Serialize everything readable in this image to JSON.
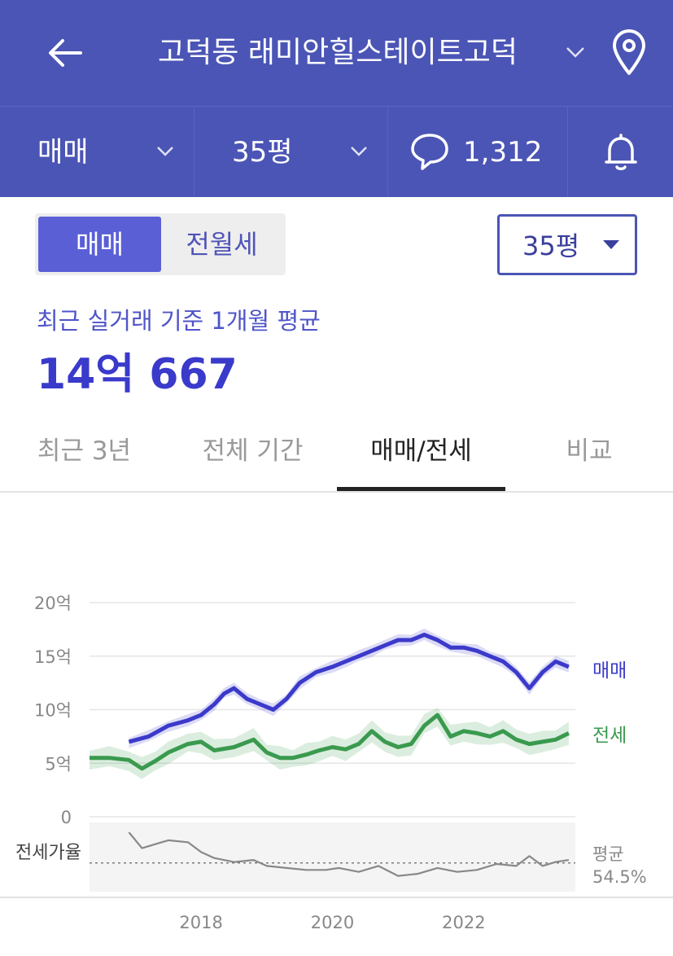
{
  "header": {
    "title": "고덕동 래미안힐스테이트고덕"
  },
  "subbar": {
    "trade_type": "매매",
    "size": "35평",
    "comment_count": "1,312"
  },
  "toggle": {
    "active": "매매",
    "inactive": "전월세"
  },
  "size_select": {
    "value": "35평"
  },
  "summary": {
    "label": "최근 실거래 기준 1개월 평균",
    "price": "14억 667"
  },
  "tabs": [
    {
      "label": "최근 3년"
    },
    {
      "label": "전체 기간"
    },
    {
      "label": "매매/전세"
    },
    {
      "label": "비교"
    }
  ],
  "colors": {
    "brand": "#4b55b5",
    "sale": "#3b3acb",
    "jeonse": "#3a9a4e",
    "ratio": "#888888"
  },
  "chart_data": {
    "type": "line",
    "xlabel": "",
    "ylabel": "",
    "x_ticks": [
      "2018",
      "2020",
      "2022"
    ],
    "y_ticks": [
      "20억",
      "15억",
      "10억",
      "5억",
      "0"
    ],
    "ylim": [
      0,
      20
    ],
    "xlim": [
      2016.3,
      2023.7
    ],
    "series": [
      {
        "name": "매매",
        "x": [
          2016.9,
          2017.2,
          2017.5,
          2017.8,
          2018.0,
          2018.2,
          2018.35,
          2018.5,
          2018.7,
          2018.9,
          2019.1,
          2019.3,
          2019.5,
          2019.75,
          2020.0,
          2020.2,
          2020.4,
          2020.6,
          2020.8,
          2021.0,
          2021.2,
          2021.4,
          2021.6,
          2021.8,
          2022.0,
          2022.2,
          2022.4,
          2022.6,
          2022.8,
          2023.0,
          2023.2,
          2023.4,
          2023.6
        ],
        "values": [
          7.0,
          7.5,
          8.5,
          9.0,
          9.5,
          10.5,
          11.5,
          12.0,
          11.0,
          10.5,
          10.0,
          11.0,
          12.5,
          13.5,
          14.0,
          14.5,
          15.0,
          15.5,
          16.0,
          16.5,
          16.5,
          17.0,
          16.5,
          15.8,
          15.8,
          15.5,
          15.0,
          14.5,
          13.5,
          12.0,
          13.5,
          14.5,
          14.0
        ]
      },
      {
        "name": "전세",
        "x": [
          2016.3,
          2016.6,
          2016.9,
          2017.1,
          2017.3,
          2017.5,
          2017.8,
          2018.0,
          2018.2,
          2018.5,
          2018.8,
          2019.0,
          2019.2,
          2019.4,
          2019.6,
          2019.8,
          2020.0,
          2020.2,
          2020.4,
          2020.6,
          2020.8,
          2021.0,
          2021.2,
          2021.4,
          2021.6,
          2021.8,
          2022.0,
          2022.2,
          2022.4,
          2022.6,
          2022.8,
          2023.0,
          2023.2,
          2023.4,
          2023.6
        ],
        "values": [
          5.5,
          5.5,
          5.3,
          4.5,
          5.2,
          6.0,
          6.8,
          7.0,
          6.2,
          6.5,
          7.2,
          6.0,
          5.5,
          5.5,
          5.8,
          6.2,
          6.5,
          6.3,
          6.8,
          8.0,
          7.0,
          6.5,
          6.8,
          8.5,
          9.5,
          7.5,
          8.0,
          7.8,
          7.5,
          8.0,
          7.2,
          6.8,
          7.0,
          7.2,
          7.8
        ]
      },
      {
        "name": "전세가율",
        "x": [
          2016.9,
          2017.1,
          2017.3,
          2017.5,
          2017.8,
          2018.0,
          2018.2,
          2018.5,
          2018.8,
          2019.0,
          2019.3,
          2019.6,
          2019.9,
          2020.1,
          2020.4,
          2020.7,
          2021.0,
          2021.3,
          2021.6,
          2021.9,
          2022.2,
          2022.5,
          2022.8,
          2023.0,
          2023.2,
          2023.4,
          2023.6
        ],
        "values": [
          70,
          62,
          64,
          66,
          65,
          60,
          57,
          55,
          56,
          53,
          52,
          51,
          51,
          52,
          50,
          53,
          48,
          49,
          52,
          50,
          51,
          54,
          53,
          58,
          53,
          55,
          56
        ]
      }
    ],
    "legend": [
      "매매",
      "전세"
    ],
    "ratio_label": "전세가율",
    "ratio_avg_label": "평균",
    "ratio_avg_value": "54.5%",
    "ratio_avg": 54.5,
    "ratio_range": [
      40,
      75
    ],
    "grid": true,
    "legend_placement": "right"
  }
}
